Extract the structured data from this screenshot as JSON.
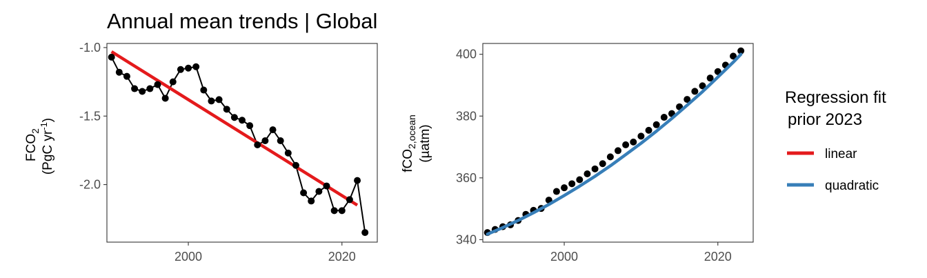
{
  "figure": {
    "title": "Annual mean trends | Global"
  },
  "legend": {
    "title_line1": "Regression fit",
    "title_line2": "prior 2023",
    "entries": [
      {
        "label": "linear",
        "color": "#E41A1C"
      },
      {
        "label": "quadratic",
        "color": "#377EB8"
      }
    ]
  },
  "chart_data": [
    {
      "type": "line",
      "ylabel_main": "FCO",
      "ylabel_sub": "2",
      "ylabel_unit_a": "(PgC yr",
      "ylabel_unit_sup": "-1",
      "ylabel_unit_b": ")",
      "xlim": [
        1989.4,
        2024.6
      ],
      "ylim": [
        -2.42,
        -0.97
      ],
      "xticks": [
        2000,
        2020
      ],
      "yticks": [
        -1.0,
        -1.5,
        -2.0
      ],
      "ytick_labels": [
        "-1.0",
        "-1.5",
        "-2.0"
      ],
      "grid": false,
      "series": [
        {
          "style": "line+points",
          "color": "#000000",
          "x": [
            1990,
            1991,
            1992,
            1993,
            1994,
            1995,
            1996,
            1997,
            1998,
            1999,
            2000,
            2001,
            2002,
            2003,
            2004,
            2005,
            2006,
            2007,
            2008,
            2009,
            2010,
            2011,
            2012,
            2013,
            2014,
            2015,
            2016,
            2017,
            2018,
            2019,
            2020,
            2021,
            2022,
            2023
          ],
          "y": [
            -1.07,
            -1.18,
            -1.21,
            -1.3,
            -1.32,
            -1.3,
            -1.27,
            -1.37,
            -1.25,
            -1.16,
            -1.15,
            -1.14,
            -1.31,
            -1.39,
            -1.38,
            -1.45,
            -1.51,
            -1.53,
            -1.57,
            -1.71,
            -1.68,
            -1.6,
            -1.68,
            -1.77,
            -1.86,
            -2.06,
            -2.12,
            -2.05,
            -2.01,
            -2.19,
            -2.19,
            -2.11,
            -1.97,
            -2.35
          ]
        },
        {
          "style": "fit",
          "color": "#E41A1C",
          "x": [
            1990,
            2022
          ],
          "y": [
            -1.03,
            -2.15
          ]
        }
      ]
    },
    {
      "type": "line",
      "ylabel_main": "fCO",
      "ylabel_sub": "2,ocean",
      "ylabel_unit": "(µatm)",
      "xlim": [
        1989.4,
        2024.6
      ],
      "ylim": [
        339.2,
        403.5
      ],
      "xticks": [
        2000,
        2020
      ],
      "yticks": [
        340,
        360,
        380,
        400
      ],
      "ytick_labels": [
        "340",
        "360",
        "380",
        "400"
      ],
      "grid": false,
      "series": [
        {
          "style": "points",
          "color": "#000000",
          "x": [
            1990,
            1991,
            1992,
            1993,
            1994,
            1995,
            1996,
            1997,
            1998,
            1999,
            2000,
            2001,
            2002,
            2003,
            2004,
            2005,
            2006,
            2007,
            2008,
            2009,
            2010,
            2011,
            2012,
            2013,
            2014,
            2015,
            2016,
            2017,
            2018,
            2019,
            2020,
            2021,
            2022,
            2023
          ],
          "y": [
            342.3,
            343.3,
            344.2,
            344.8,
            346.2,
            348.2,
            349.5,
            350.1,
            352.8,
            355.6,
            356.8,
            358.1,
            359.4,
            361.3,
            362.9,
            364.6,
            366.8,
            368.8,
            370.7,
            371.6,
            373.5,
            375.4,
            377.2,
            379.6,
            380.8,
            383.0,
            385.4,
            388.0,
            389.8,
            392.3,
            394.4,
            396.5,
            399.4,
            401.1
          ]
        },
        {
          "style": "fit",
          "color": "#377EB8",
          "x": [
            1990,
            1992,
            1994,
            1996,
            1998,
            2000,
            2002,
            2004,
            2006,
            2008,
            2010,
            2012,
            2014,
            2016,
            2018,
            2020,
            2022,
            2023
          ],
          "y": [
            341.8,
            343.9,
            346.2,
            348.7,
            351.4,
            354.3,
            357.3,
            360.5,
            363.9,
            367.5,
            371.2,
            375.1,
            379.2,
            383.5,
            387.9,
            392.6,
            397.4,
            400.0
          ]
        }
      ]
    }
  ]
}
